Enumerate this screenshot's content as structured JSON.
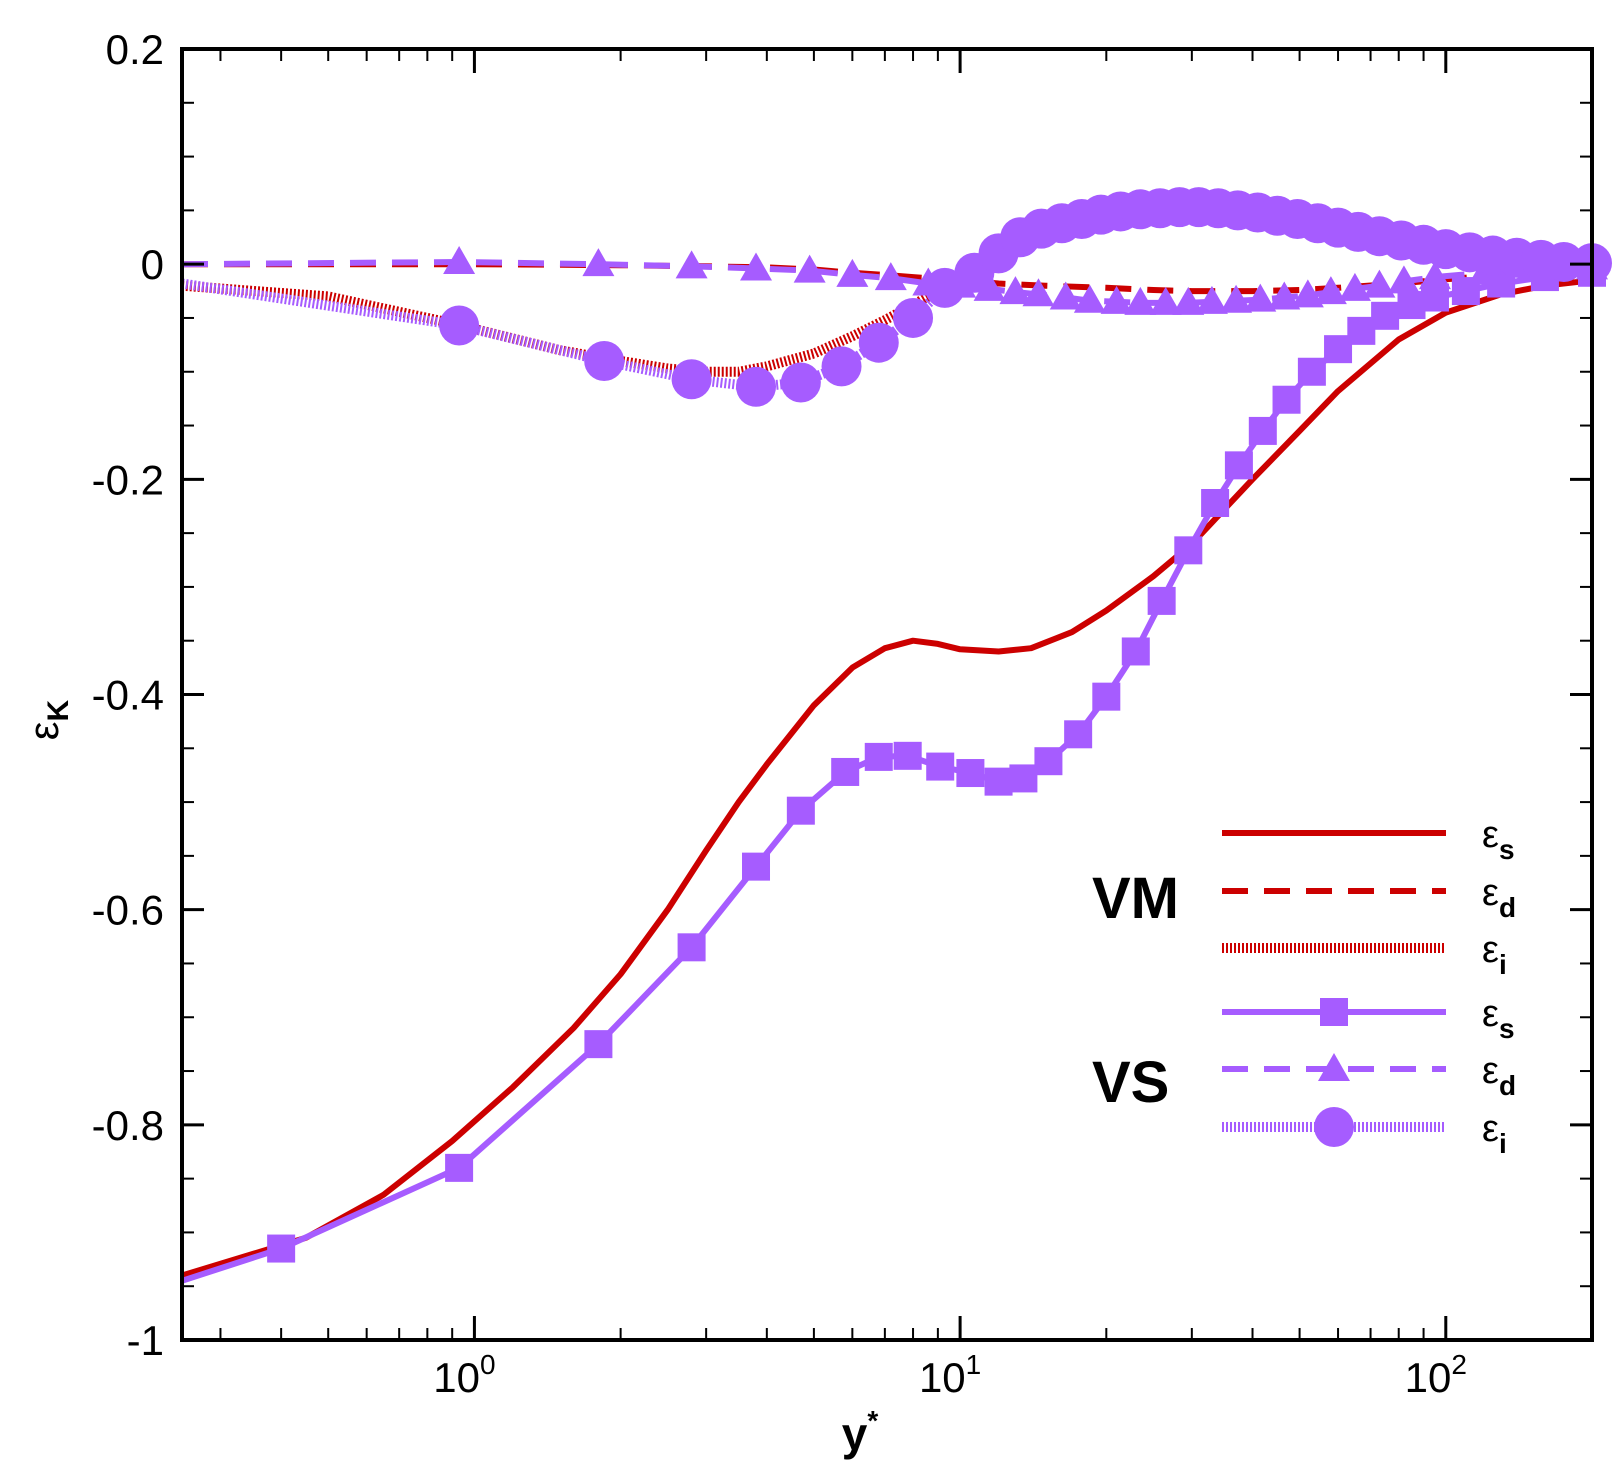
{
  "colors": {
    "vm": "#cc0000",
    "vs": "#a65cff",
    "axis": "#000000",
    "background": "#ffffff"
  },
  "chart_data": {
    "type": "line",
    "xscale": "log",
    "xlim": [
      0.25,
      200
    ],
    "ylim": [
      -1,
      0.2
    ],
    "xlabel": {
      "base": "y",
      "superscript": "*"
    },
    "ylabel": {
      "base": "ε",
      "subscript": "K"
    },
    "x_ticks": [
      {
        "value": 1,
        "base": "10",
        "exp": "0"
      },
      {
        "value": 10,
        "base": "10",
        "exp": "1"
      },
      {
        "value": 100,
        "base": "10",
        "exp": "2"
      }
    ],
    "y_ticks": [
      {
        "value": 0.2,
        "label": "0.2"
      },
      {
        "value": 0,
        "label": "0"
      },
      {
        "value": -0.2,
        "label": "-0.2"
      },
      {
        "value": -0.4,
        "label": "-0.4"
      },
      {
        "value": -0.6,
        "label": "-0.6"
      },
      {
        "value": -0.8,
        "label": "-0.8"
      },
      {
        "value": -1,
        "label": "-1"
      }
    ],
    "legend": {
      "placement": "bottom-right",
      "groups": [
        {
          "label": "VM",
          "color": "vm",
          "series_ids": [
            "vm_s",
            "vm_d",
            "vm_i"
          ]
        },
        {
          "label": "VS",
          "color": "vs",
          "series_ids": [
            "vs_s",
            "vs_d",
            "vs_i"
          ]
        }
      ]
    },
    "series": [
      {
        "id": "vm_s",
        "group": "VM",
        "symbol": "ε",
        "sub": "s",
        "color": "vm",
        "style": "solid",
        "marker": "none",
        "x": [
          0.25,
          0.45,
          0.65,
          0.9,
          1.2,
          1.6,
          2.0,
          2.5,
          3.0,
          3.5,
          4.0,
          5.0,
          6.0,
          7.0,
          8.0,
          9.0,
          10.0,
          12.0,
          14.0,
          17.0,
          20.0,
          25.0,
          30.0,
          40.0,
          50.0,
          60.0,
          80.0,
          100.0,
          130.0,
          160.0,
          200.0
        ],
        "y": [
          -0.94,
          -0.905,
          -0.865,
          -0.815,
          -0.765,
          -0.71,
          -0.66,
          -0.6,
          -0.545,
          -0.5,
          -0.465,
          -0.41,
          -0.375,
          -0.357,
          -0.35,
          -0.353,
          -0.358,
          -0.36,
          -0.357,
          -0.342,
          -0.322,
          -0.29,
          -0.26,
          -0.2,
          -0.155,
          -0.118,
          -0.07,
          -0.045,
          -0.028,
          -0.02,
          -0.015
        ]
      },
      {
        "id": "vm_d",
        "group": "VM",
        "symbol": "ε",
        "sub": "d",
        "color": "vm",
        "style": "dashed",
        "marker": "none",
        "x": [
          0.25,
          1.0,
          2.0,
          3.0,
          4.0,
          5.0,
          6.0,
          7.0,
          8.0,
          10.0,
          12.0,
          15.0,
          20.0,
          25.0,
          30.0,
          40.0,
          50.0,
          60.0,
          80.0,
          100.0,
          150.0,
          200.0
        ],
        "y": [
          0.0,
          0.0,
          -0.001,
          -0.002,
          -0.003,
          -0.005,
          -0.008,
          -0.01,
          -0.012,
          -0.015,
          -0.018,
          -0.02,
          -0.022,
          -0.024,
          -0.025,
          -0.025,
          -0.024,
          -0.022,
          -0.018,
          -0.014,
          -0.008,
          -0.005
        ]
      },
      {
        "id": "vm_i",
        "group": "VM",
        "symbol": "ε",
        "sub": "i",
        "color": "vm",
        "style": "dotted",
        "marker": "none",
        "x": [
          0.25,
          0.5,
          0.9,
          1.5,
          2.0,
          2.5,
          3.0,
          3.5,
          4.0,
          5.0,
          6.0,
          7.0,
          8.0,
          9.0,
          10.0,
          12.0,
          14.0,
          17.0,
          20.0,
          25.0,
          30.0,
          40.0,
          50.0,
          60.0,
          80.0,
          100.0,
          150.0,
          200.0
        ],
        "y": [
          -0.02,
          -0.03,
          -0.055,
          -0.08,
          -0.09,
          -0.097,
          -0.1,
          -0.1,
          -0.095,
          -0.083,
          -0.067,
          -0.052,
          -0.038,
          -0.025,
          -0.012,
          0.005,
          0.02,
          0.033,
          0.04,
          0.045,
          0.045,
          0.04,
          0.033,
          0.027,
          0.018,
          0.012,
          0.005,
          0.002
        ]
      },
      {
        "id": "vs_s",
        "group": "VS",
        "symbol": "ε",
        "sub": "s",
        "color": "vs",
        "style": "solid",
        "marker": "square",
        "x": [
          0.25,
          0.4,
          0.93,
          1.8,
          2.8,
          3.8,
          4.7,
          5.8,
          6.8,
          7.8,
          9.1,
          10.5,
          12.0,
          13.5,
          15.2,
          17.5,
          20.0,
          23.0,
          26.0,
          29.5,
          33.5,
          37.5,
          42.0,
          47.0,
          53.0,
          60.0,
          67.0,
          75.0,
          85.0,
          95.0,
          110.0,
          130.0,
          160.0,
          200.0
        ],
        "y": [
          -0.945,
          -0.915,
          -0.84,
          -0.725,
          -0.635,
          -0.56,
          -0.508,
          -0.472,
          -0.458,
          -0.457,
          -0.467,
          -0.473,
          -0.481,
          -0.478,
          -0.462,
          -0.437,
          -0.402,
          -0.36,
          -0.313,
          -0.266,
          -0.222,
          -0.187,
          -0.155,
          -0.126,
          -0.1,
          -0.079,
          -0.062,
          -0.048,
          -0.038,
          -0.031,
          -0.025,
          -0.018,
          -0.012,
          -0.008
        ]
      },
      {
        "id": "vs_d",
        "group": "VS",
        "symbol": "ε",
        "sub": "d",
        "color": "vs",
        "style": "dashed",
        "marker": "triangle",
        "x": [
          0.25,
          0.93,
          1.8,
          2.8,
          3.8,
          4.9,
          6.0,
          7.2,
          8.6,
          10.0,
          11.5,
          13.0,
          14.5,
          16.5,
          18.5,
          21.0,
          23.5,
          26.5,
          29.5,
          33.0,
          37.0,
          41.5,
          46.5,
          52.0,
          58.0,
          65.0,
          73.0,
          82.0,
          95.0,
          120.0,
          150.0,
          200.0
        ],
        "y": [
          0.0,
          0.002,
          0.0,
          -0.002,
          -0.004,
          -0.006,
          -0.01,
          -0.013,
          -0.018,
          -0.02,
          -0.023,
          -0.026,
          -0.028,
          -0.031,
          -0.034,
          -0.035,
          -0.036,
          -0.036,
          -0.036,
          -0.035,
          -0.034,
          -0.033,
          -0.031,
          -0.029,
          -0.026,
          -0.023,
          -0.02,
          -0.016,
          -0.012,
          -0.008,
          -0.005,
          -0.003
        ]
      },
      {
        "id": "vs_i",
        "group": "VS",
        "symbol": "ε",
        "sub": "i",
        "color": "vs",
        "style": "dotted",
        "marker": "circle",
        "x": [
          0.25,
          0.93,
          1.85,
          2.8,
          3.8,
          4.7,
          5.7,
          6.8,
          8.0,
          9.3,
          10.7,
          12.0,
          13.3,
          14.7,
          16.2,
          17.8,
          19.5,
          21.4,
          23.5,
          25.8,
          28.3,
          31.0,
          34.0,
          37.3,
          41.0,
          45.0,
          49.5,
          54.5,
          60.0,
          66.0,
          73.0,
          81.0,
          90.0,
          100.0,
          112.0,
          125.0,
          140.0,
          157.0,
          175.0,
          200.0
        ],
        "y": [
          -0.018,
          -0.057,
          -0.09,
          -0.107,
          -0.114,
          -0.11,
          -0.095,
          -0.073,
          -0.05,
          -0.022,
          -0.008,
          0.01,
          0.025,
          0.033,
          0.038,
          0.042,
          0.046,
          0.049,
          0.051,
          0.052,
          0.053,
          0.053,
          0.052,
          0.05,
          0.048,
          0.045,
          0.042,
          0.038,
          0.034,
          0.03,
          0.026,
          0.022,
          0.018,
          0.014,
          0.011,
          0.008,
          0.006,
          0.004,
          0.002,
          0.001
        ]
      }
    ]
  }
}
